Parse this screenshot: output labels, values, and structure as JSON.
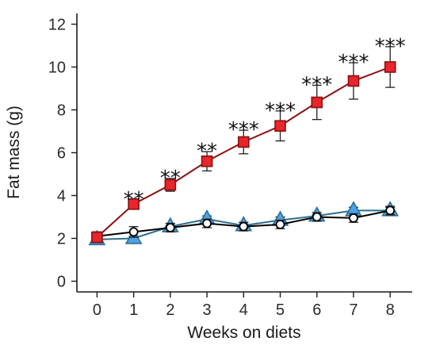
{
  "chart_data": {
    "type": "line",
    "title": "",
    "xlabel": "Weeks on diets",
    "ylabel": "Fat mass (g)",
    "x": [
      0,
      1,
      2,
      3,
      4,
      5,
      6,
      7,
      8
    ],
    "xlim": [
      -0.55,
      8.6
    ],
    "ylim": [
      -0.5,
      12.5
    ],
    "yticks": [
      0,
      2,
      4,
      6,
      8,
      10,
      12
    ],
    "xticks": [
      0,
      1,
      2,
      3,
      4,
      5,
      6,
      7,
      8
    ],
    "grid": false,
    "legend": "none",
    "series": [
      {
        "marker": "circle",
        "color": "#000000",
        "fill": "#ffffff",
        "values": [
          2.1,
          2.3,
          2.5,
          2.7,
          2.55,
          2.65,
          3.0,
          2.95,
          3.3
        ],
        "errors": [
          0.2,
          0.25,
          0.2,
          0.2,
          0.2,
          0.2,
          0.2,
          0.2,
          0.2
        ]
      },
      {
        "marker": "triangle",
        "color": "#2e6f8e",
        "fill": "#4da3e6",
        "values": [
          1.95,
          2.0,
          2.55,
          2.9,
          2.6,
          2.85,
          3.05,
          3.3,
          3.3
        ],
        "errors": [
          0.1,
          0.1,
          0.15,
          0.15,
          0.15,
          0.15,
          0.15,
          0.15,
          0.15
        ]
      },
      {
        "marker": "square",
        "color": "#8b0f0f",
        "fill": "#e8262b",
        "values": [
          2.05,
          3.6,
          4.5,
          5.6,
          6.5,
          7.25,
          8.35,
          9.35,
          10.0
        ],
        "errors": [
          0.25,
          0.2,
          0.3,
          0.45,
          0.55,
          0.7,
          0.8,
          0.85,
          0.95
        ]
      }
    ],
    "significance": [
      "",
      "**",
      "**",
      "**",
      "***",
      "***",
      "***",
      "***",
      "***"
    ]
  }
}
